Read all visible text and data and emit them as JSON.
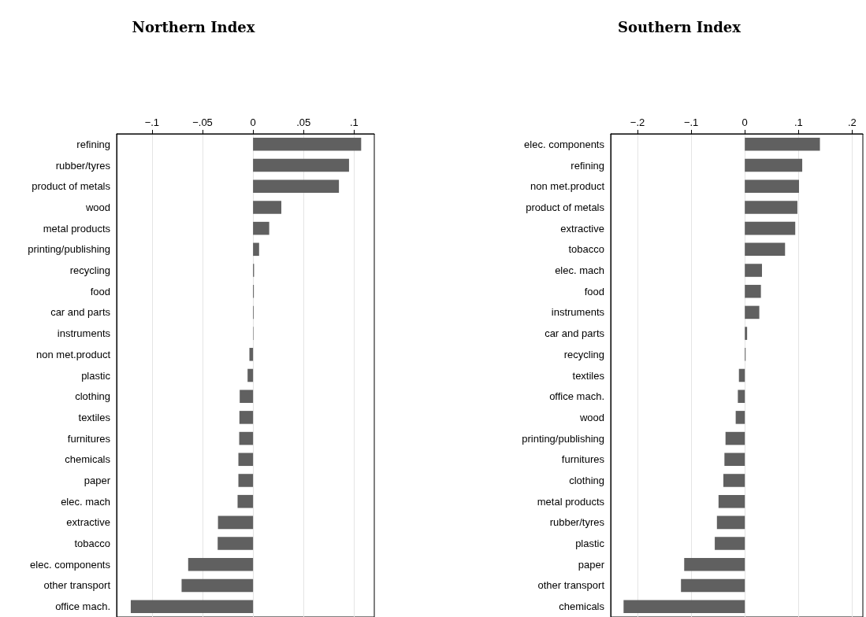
{
  "chart_data": [
    {
      "type": "bar",
      "title": "Northern Index",
      "orientation": "horizontal",
      "grid": "x",
      "color": "#606060",
      "categories": [
        "refining",
        "rubber/tyres",
        "product of metals",
        "wood",
        "metal products",
        "printing/publishing",
        "recycling",
        "food",
        "car and parts",
        "instruments",
        "non met.product",
        "plastic",
        "clothing",
        "textiles",
        "furnitures",
        "chemicals",
        "paper",
        "elec. mach",
        "extractive",
        "tobacco",
        "elec. components",
        "other transport",
        "office mach."
      ],
      "values": [
        0.107,
        0.095,
        0.085,
        0.028,
        0.016,
        0.006,
        0.001,
        0.0008,
        0.0006,
        0.0004,
        -0.0036,
        -0.0054,
        -0.0132,
        -0.0135,
        -0.0137,
        -0.0145,
        -0.0145,
        -0.0153,
        -0.0347,
        -0.035,
        -0.0642,
        -0.0707,
        -0.121
      ],
      "xlim": [
        -0.135,
        0.12
      ],
      "xticks": [
        {
          "value": -0.1,
          "label": "−.1"
        },
        {
          "value": -0.05,
          "label": "−.05"
        },
        {
          "value": 0,
          "label": "0"
        },
        {
          "value": 0.05,
          "label": ".05"
        },
        {
          "value": 0.1,
          "label": ".1"
        }
      ]
    },
    {
      "type": "bar",
      "title": "Southern Index",
      "orientation": "horizontal",
      "grid": "x",
      "color": "#606060",
      "categories": [
        "elec. components",
        "refining",
        "non met.product",
        "product of metals",
        "extractive",
        "tobacco",
        "elec. mach",
        "food",
        "instruments",
        "car and parts",
        "recycling",
        "textiles",
        "office mach.",
        "wood",
        "printing/publishing",
        "furnitures",
        "clothing",
        "metal products",
        "rubber/tyres",
        "plastic",
        "paper",
        "other transport",
        "chemicals"
      ],
      "values": [
        0.14,
        0.107,
        0.101,
        0.098,
        0.094,
        0.075,
        0.032,
        0.03,
        0.027,
        0.0043,
        0.0015,
        -0.011,
        -0.013,
        -0.017,
        -0.036,
        -0.038,
        -0.04,
        -0.049,
        -0.052,
        -0.056,
        -0.113,
        -0.119,
        -0.226
      ],
      "xlim": [
        -0.25,
        0.22
      ],
      "xticks": [
        {
          "value": -0.2,
          "label": "−.2"
        },
        {
          "value": -0.1,
          "label": "−.1"
        },
        {
          "value": 0,
          "label": "0"
        },
        {
          "value": 0.1,
          "label": ".1"
        },
        {
          "value": 0.2,
          "label": ".2"
        }
      ]
    }
  ]
}
